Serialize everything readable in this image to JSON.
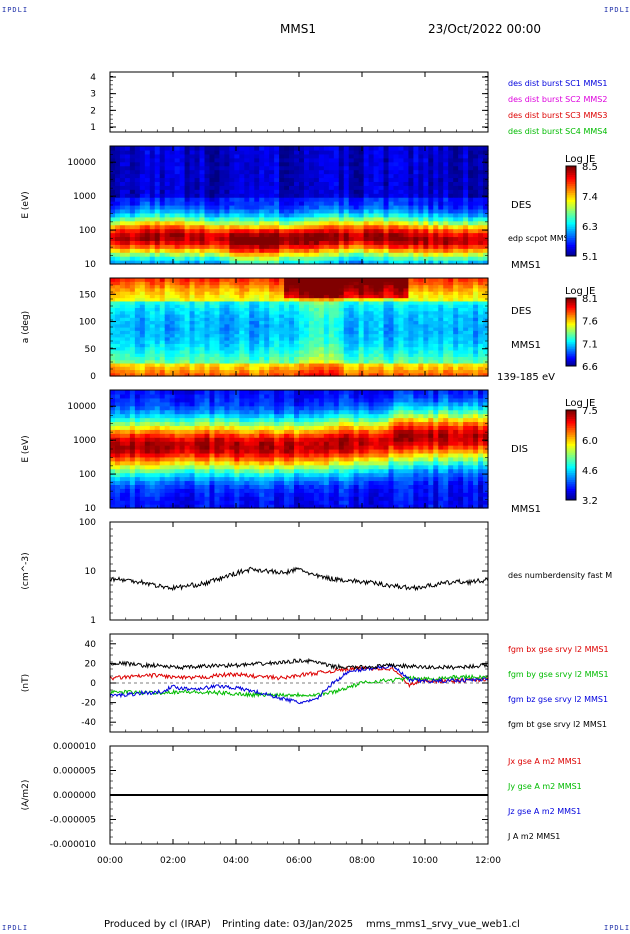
{
  "corner_label": "IPDLI",
  "header": {
    "spacecraft": "MMS1",
    "date": "23/Oct/2022 00:00"
  },
  "footer": {
    "producer": "Produced by cl (IRAP)",
    "printing": "Printing date: 03/Jan/2025",
    "file": "mms_mms1_srvy_vue_web1.cl"
  },
  "chart_data": [
    {
      "type": "line",
      "ylim": [
        0.7,
        4.3
      ],
      "yticks": [
        "4",
        "3",
        "2",
        "1"
      ],
      "right_labels": [
        {
          "text": "des dist burst SC1 MMS1",
          "color": "#0000dd"
        },
        {
          "text": "des dist burst SC2 MMS2",
          "color": "#dd00dd"
        },
        {
          "text": "des dist burst SC3 MMS3",
          "color": "#dd0000"
        },
        {
          "text": "des dist burst SC4 MMS4",
          "color": "#00bb00"
        }
      ]
    },
    {
      "type": "heatmap",
      "ylabel": "E (eV)",
      "yscale": "log",
      "ylim": [
        10,
        30000
      ],
      "yticks": [
        "10000",
        "1000",
        "100",
        "10"
      ],
      "right_labels": [
        {
          "text": "DES",
          "color": "#000000"
        },
        {
          "text": "edp scpot MMS1",
          "color": "#000000"
        },
        {
          "text": "MMS1",
          "color": "#000000"
        }
      ],
      "colorbar": {
        "title": "Log JE",
        "ticks": [
          "8.5",
          "7.4",
          "6.3",
          "5.1"
        ],
        "range": [
          5.1,
          8.5
        ]
      },
      "band": "E ~ 20-80 eV peak, falling to background above ~600 eV"
    },
    {
      "type": "heatmap",
      "ylabel": "a (deg)",
      "ylim": [
        0,
        180
      ],
      "yticks": [
        "150",
        "100",
        "50",
        "0"
      ],
      "right_labels": [
        {
          "text": "DES",
          "color": "#000000"
        },
        {
          "text": "MMS1",
          "color": "#000000"
        },
        {
          "text": "139-185 eV",
          "color": "#000000"
        }
      ],
      "colorbar": {
        "title": "Log JE",
        "ticks": [
          "8.1",
          "7.6",
          "7.1",
          "6.6"
        ],
        "range": [
          6.6,
          8.1
        ]
      }
    },
    {
      "type": "heatmap",
      "ylabel": "E (eV)",
      "yscale": "log",
      "ylim": [
        10,
        30000
      ],
      "yticks": [
        "10000",
        "1000",
        "100",
        "10"
      ],
      "right_labels": [
        {
          "text": "DIS",
          "color": "#000000"
        },
        {
          "text": "MMS1",
          "color": "#000000"
        }
      ],
      "colorbar": {
        "title": "Log JE",
        "ticks": [
          "7.5",
          "6.0",
          "4.6",
          "3.2"
        ],
        "range": [
          3.2,
          7.5
        ]
      }
    },
    {
      "type": "line",
      "ylabel": "(cm^-3)",
      "yscale": "log",
      "ylim": [
        1,
        100
      ],
      "yticks": [
        "100",
        "10",
        "1"
      ],
      "right_labels": [
        {
          "text": "des numberdensity fast M",
          "color": "#000000"
        }
      ],
      "series": [
        {
          "name": "des numberdensity fast M",
          "color": "#000000",
          "x_hours": [
            0,
            0.5,
            1,
            1.5,
            2,
            2.5,
            3,
            3.5,
            4,
            4.5,
            5,
            5.5,
            6,
            6.5,
            7,
            7.5,
            8,
            8.5,
            9,
            9.5,
            10,
            10.5,
            11,
            11.5,
            12
          ],
          "values": [
            7,
            6.5,
            6,
            5,
            4.5,
            5,
            5.5,
            7,
            9,
            11,
            10,
            9,
            11,
            8,
            7,
            6.5,
            6,
            5.5,
            5,
            4.5,
            4.8,
            5.5,
            6,
            6,
            6.5
          ]
        }
      ]
    },
    {
      "type": "line",
      "ylabel": "(nT)",
      "ylim": [
        -50,
        50
      ],
      "yticks": [
        "40",
        "20",
        "0",
        "-20",
        "-40"
      ],
      "right_labels": [
        {
          "text": "fgm bx gse srvy l2 MMS1",
          "color": "#dd0000"
        },
        {
          "text": "fgm by gse srvy l2 MMS1",
          "color": "#00bb00"
        },
        {
          "text": "fgm bz gse srvy l2 MMS1",
          "color": "#0000dd"
        },
        {
          "text": "fgm bt gse srvy l2 MMS1",
          "color": "#000000"
        }
      ],
      "x_hours": [
        0,
        0.5,
        1,
        1.5,
        2,
        2.5,
        3,
        3.5,
        4,
        4.5,
        5,
        5.5,
        6,
        6.5,
        7,
        7.5,
        8,
        8.5,
        9,
        9.5,
        10,
        10.5,
        11,
        11.5,
        12
      ],
      "series": [
        {
          "name": "fgm bx gse srvy l2 MMS1",
          "color": "#dd0000",
          "values": [
            5,
            6,
            7,
            8,
            6,
            5,
            6,
            8,
            9,
            7,
            6,
            5,
            8,
            10,
            12,
            14,
            15,
            15,
            14,
            -2,
            3,
            2,
            2,
            3,
            4
          ]
        },
        {
          "name": "fgm by gse srvy l2 MMS1",
          "color": "#00bb00",
          "values": [
            -10,
            -9,
            -10,
            -10,
            -9,
            -9,
            -10,
            -10,
            -11,
            -12,
            -12,
            -12,
            -12,
            -12,
            -10,
            -5,
            0,
            2,
            3,
            5,
            4,
            5,
            6,
            6,
            6
          ]
        },
        {
          "name": "fgm bz gse srvy l2 MMS1",
          "color": "#0000dd",
          "values": [
            -13,
            -12,
            -10,
            -10,
            -4,
            -6,
            -5,
            -3,
            -5,
            -8,
            -12,
            -16,
            -20,
            -18,
            -2,
            10,
            14,
            16,
            17,
            3,
            2,
            2,
            3,
            3,
            4
          ]
        },
        {
          "name": "fgm bt gse srvy l2 MMS1",
          "color": "#000000",
          "values": [
            20,
            20,
            18,
            18,
            16,
            16,
            17,
            18,
            18,
            19,
            20,
            21,
            23,
            22,
            17,
            16,
            16,
            17,
            18,
            17,
            16,
            16,
            16,
            17,
            18
          ]
        }
      ]
    },
    {
      "type": "line",
      "ylabel": "(A/m2)",
      "ylim": [
        -1e-05,
        1e-05
      ],
      "yticks": [
        "0.000010",
        "0.000005",
        "0.000000",
        "-0.000005",
        "-0.000010"
      ],
      "right_labels": [
        {
          "text": "Jx gse A m2 MMS1",
          "color": "#dd0000"
        },
        {
          "text": "Jy gse A m2 MMS1",
          "color": "#00bb00"
        },
        {
          "text": "Jz gse A m2 MMS1",
          "color": "#0000dd"
        },
        {
          "text": "J A m2 MMS1",
          "color": "#000000"
        }
      ],
      "series": [
        {
          "name": "J A m2 MMS1",
          "color": "#000000",
          "x_hours": [
            0,
            12
          ],
          "values": [
            0,
            0
          ]
        }
      ]
    }
  ],
  "xaxis": {
    "ticks": [
      "00:00",
      "02:00",
      "04:00",
      "06:00",
      "08:00",
      "10:00",
      "12:00"
    ],
    "range_hours": [
      0,
      12
    ]
  }
}
